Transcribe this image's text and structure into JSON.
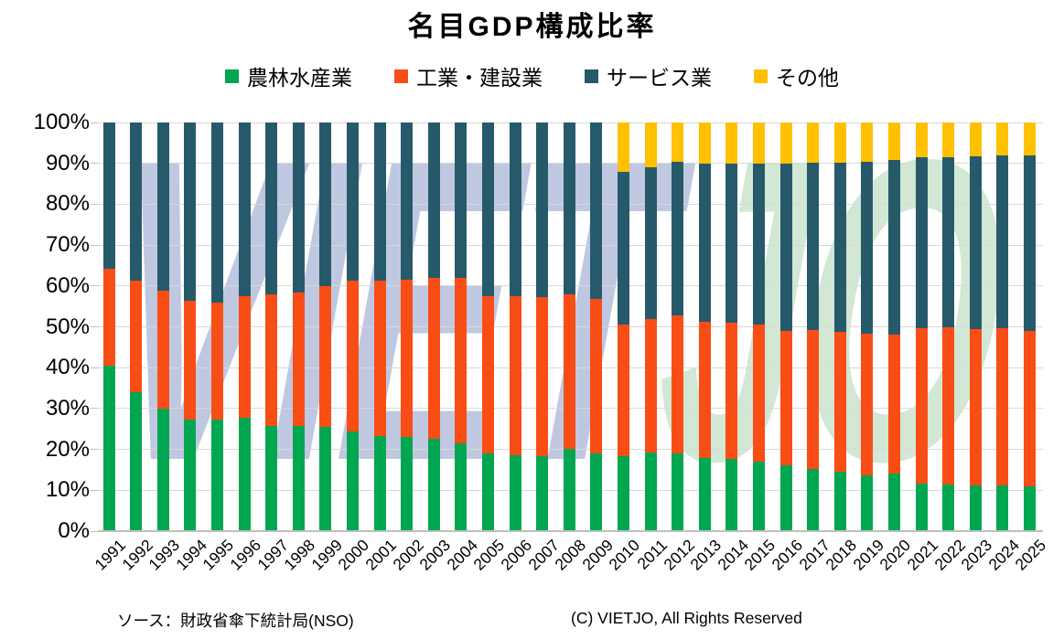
{
  "title": "名目GDP構成比率",
  "footer": {
    "source": "ソース：財政省傘下統計局(NSO)",
    "copyright": "(C) VIETJO, All Rights Reserved"
  },
  "watermark": {
    "part1": "VIET",
    "part2": "JO",
    "color1": "#bfc8e0",
    "color2": "#d2e7d4"
  },
  "colors": {
    "gridline": "#d9d9d9",
    "axis": "#bfbfbf",
    "background": "#ffffff",
    "text": "#000000"
  },
  "chart_data": {
    "type": "bar",
    "stacked": true,
    "percent_stacked": true,
    "title": "名目GDP構成比率",
    "xlabel": "",
    "ylabel": "",
    "ylim": [
      0,
      100
    ],
    "grid": true,
    "legend_position": "top",
    "y_ticks": [
      "0%",
      "10%",
      "20%",
      "30%",
      "40%",
      "50%",
      "60%",
      "70%",
      "80%",
      "90%",
      "100%"
    ],
    "categories": [
      1991,
      1992,
      1993,
      1994,
      1995,
      1996,
      1997,
      1998,
      1999,
      2000,
      2001,
      2002,
      2003,
      2004,
      2005,
      2006,
      2007,
      2008,
      2009,
      2010,
      2011,
      2012,
      2013,
      2014,
      2015,
      2016,
      2017,
      2018,
      2019,
      2020,
      2021,
      2022,
      2023,
      2024,
      2025
    ],
    "series": [
      {
        "name": "農林水産業",
        "key": "agriculture",
        "color": "#00a650",
        "values": [
          40.5,
          33.9,
          29.9,
          27.4,
          27.2,
          27.8,
          25.8,
          25.8,
          25.4,
          24.5,
          23.2,
          23.0,
          22.5,
          21.5,
          19.1,
          18.5,
          18.4,
          20.2,
          19.0,
          18.4,
          19.3,
          19.0,
          17.9,
          17.6,
          16.9,
          16.0,
          15.2,
          14.5,
          13.6,
          14.0,
          11.7,
          11.5,
          11.1,
          11.2,
          10.9
        ]
      },
      {
        "name": "工業・建設業",
        "key": "industry-construction",
        "color": "#f94d16",
        "values": [
          23.8,
          27.3,
          28.9,
          28.9,
          28.8,
          29.7,
          32.1,
          32.5,
          34.5,
          36.7,
          38.1,
          38.5,
          39.5,
          40.5,
          38.3,
          38.9,
          38.8,
          37.7,
          37.9,
          32.2,
          32.5,
          33.9,
          33.3,
          33.5,
          33.6,
          33.0,
          34.0,
          34.3,
          34.8,
          34.2,
          38.0,
          38.5,
          38.3,
          38.4,
          38.1
        ]
      },
      {
        "name": "サービス業",
        "key": "services",
        "color": "#265a6b",
        "values": [
          35.7,
          38.8,
          41.2,
          43.7,
          44.0,
          42.5,
          42.1,
          41.7,
          40.1,
          38.8,
          38.7,
          38.5,
          38.0,
          38.0,
          42.6,
          42.6,
          42.8,
          42.1,
          43.1,
          37.3,
          37.2,
          37.5,
          38.8,
          38.9,
          39.5,
          40.9,
          40.9,
          41.3,
          42.1,
          42.7,
          41.8,
          41.5,
          42.3,
          42.4,
          43.0
        ]
      },
      {
        "name": "その他",
        "key": "other",
        "color": "#ffc000",
        "values": [
          0,
          0,
          0,
          0,
          0,
          0,
          0,
          0,
          0,
          0,
          0,
          0,
          0,
          0,
          0,
          0,
          0,
          0,
          0,
          12.1,
          11.0,
          9.6,
          10.0,
          10.0,
          10.0,
          10.1,
          9.9,
          9.9,
          9.5,
          9.1,
          8.5,
          8.5,
          8.3,
          8.0,
          8.0
        ]
      }
    ]
  }
}
